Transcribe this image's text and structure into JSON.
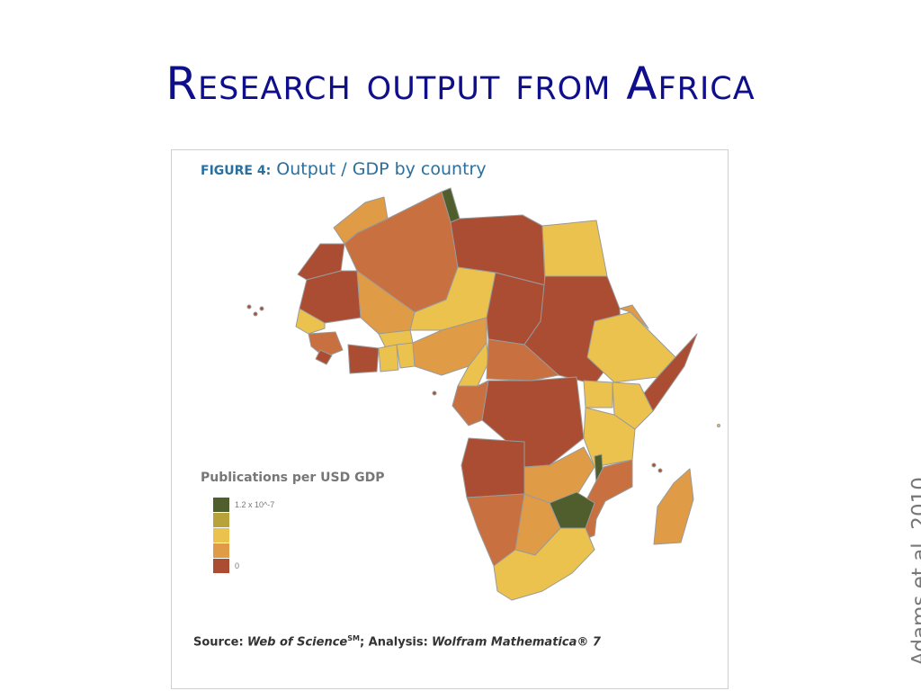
{
  "slide": {
    "title": "Research output from Africa",
    "citation": "Adams et al, 2010"
  },
  "figure": {
    "label": "FIGURE 4:",
    "title": "Output / GDP by country",
    "legend_title": "Publications per USD GDP",
    "legend_max": "1.2 x 10^-7",
    "legend_min": "0",
    "legend_colors": [
      "#4f5e2c",
      "#b8a33b",
      "#ecc24e",
      "#df9b46",
      "#aa4d33"
    ],
    "source_label": "Source:",
    "source_name": "Web of Science",
    "source_sup": "SM",
    "analysis_label": "; Analysis:",
    "analysis_tool": "Wolfram Mathematica® 7"
  }
}
